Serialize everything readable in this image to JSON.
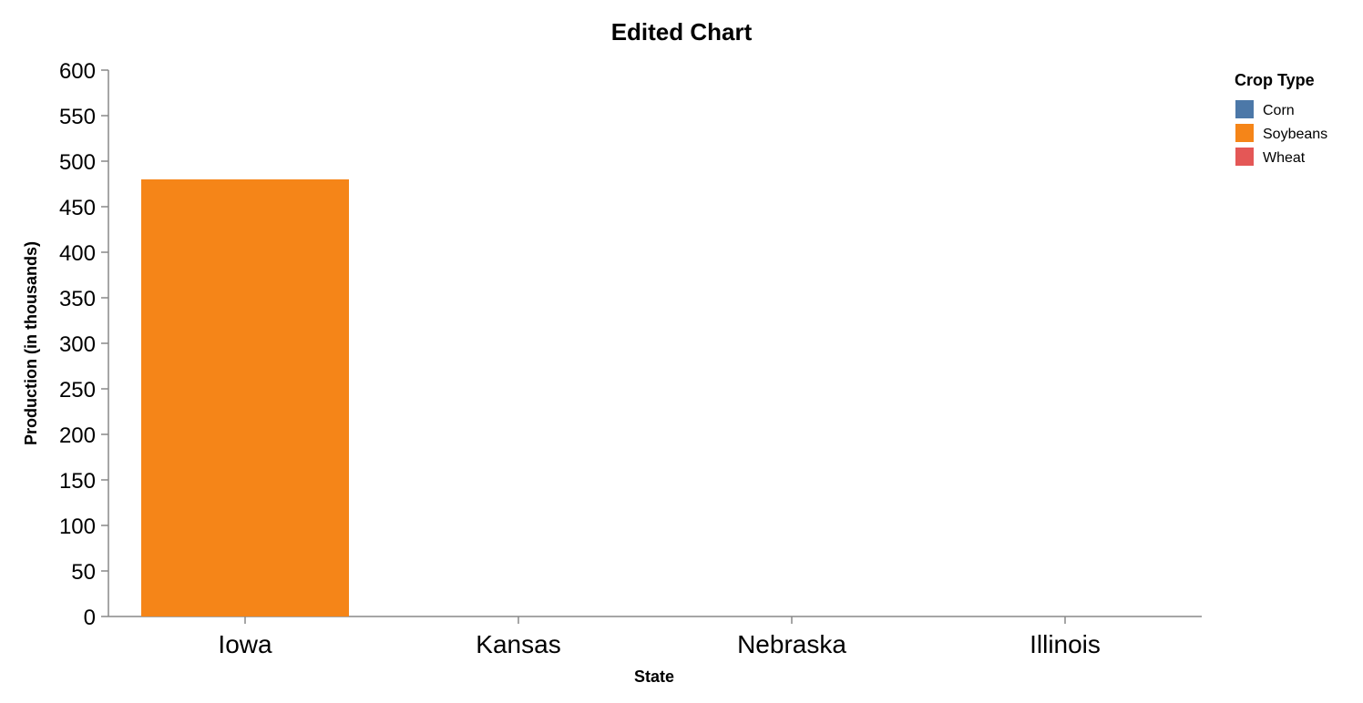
{
  "chart_data": {
    "type": "bar",
    "title": "Edited Chart",
    "xlabel": "State",
    "ylabel": "Production (in thousands)",
    "categories": [
      "Iowa",
      "Kansas",
      "Nebraska",
      "Illinois"
    ],
    "series": [
      {
        "name": "Corn",
        "color": "#4c78a8",
        "values": [
          null,
          null,
          null,
          null
        ]
      },
      {
        "name": "Soybeans",
        "color": "#f58518",
        "values": [
          480,
          null,
          null,
          null
        ]
      },
      {
        "name": "Wheat",
        "color": "#e45756",
        "values": [
          null,
          null,
          null,
          null
        ]
      }
    ],
    "ylim": [
      0,
      600
    ],
    "yticks": [
      0,
      50,
      100,
      150,
      200,
      250,
      300,
      350,
      400,
      450,
      500,
      550,
      600
    ],
    "grid": false,
    "legend": {
      "title": "Crop Type",
      "position": "top-right"
    }
  }
}
